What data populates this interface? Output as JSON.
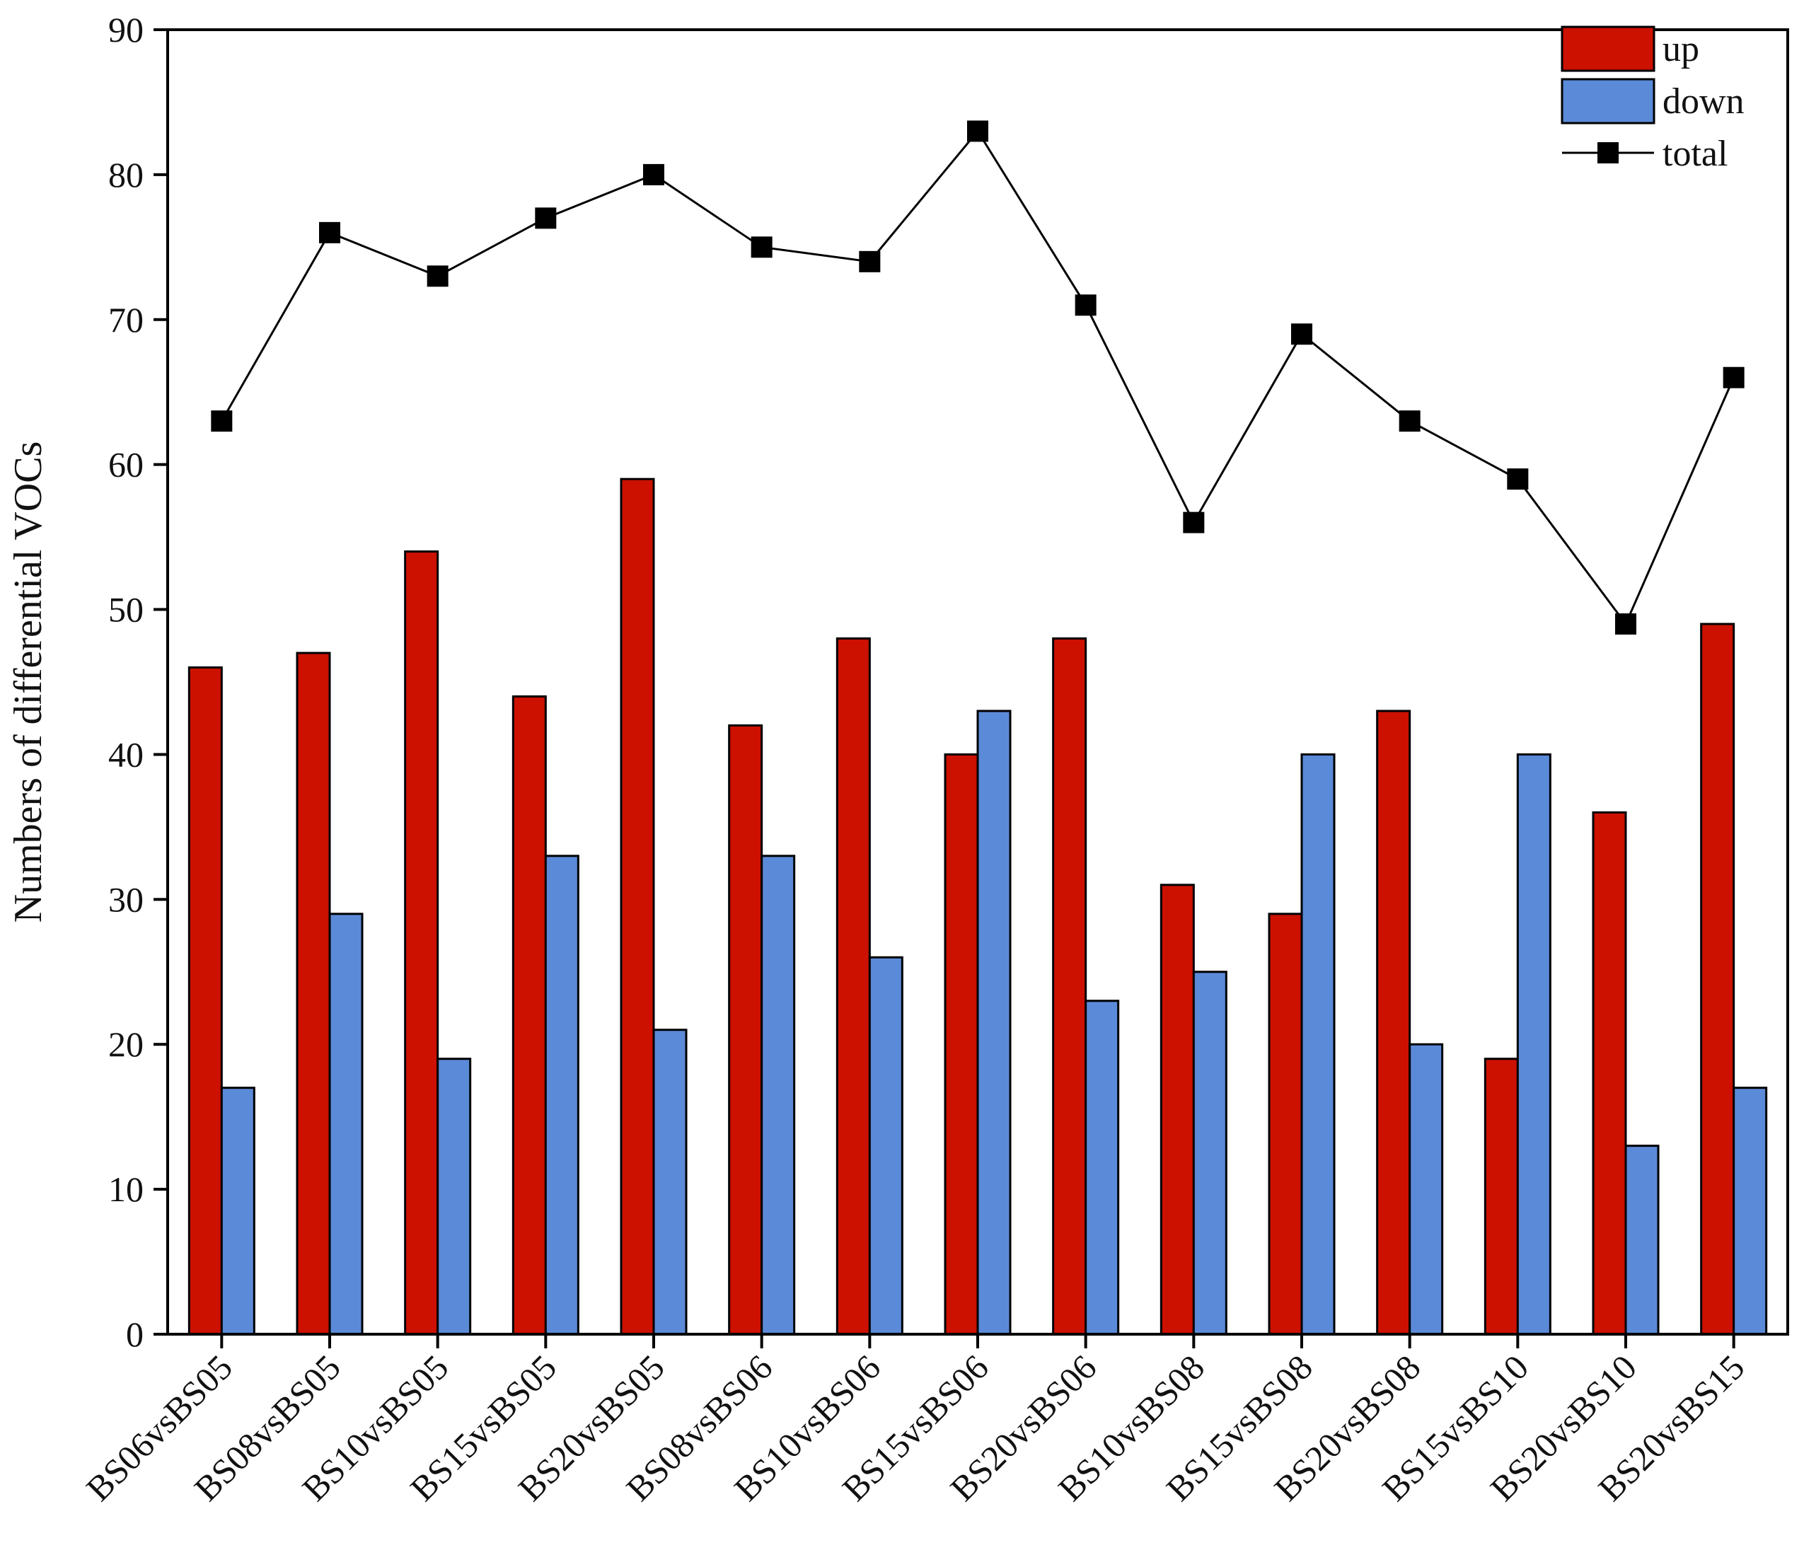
{
  "chart_data": {
    "type": "bar",
    "title": "",
    "xlabel": "",
    "ylabel": "Numbers of differential VOCs",
    "ylim": [
      0,
      90
    ],
    "yticks": [
      "0",
      "10",
      "20",
      "30",
      "40",
      "50",
      "60",
      "70",
      "80",
      "90"
    ],
    "grid": false,
    "legend_position": "top-right",
    "categories": [
      "BS06vsBS05",
      "BS08vsBS05",
      "BS10vsBS05",
      "BS15vsBS05",
      "BS20vsBS05",
      "BS08vsBS06",
      "BS10vsBS06",
      "BS15vsBS06",
      "BS20vsBS06",
      "BS10vsBS08",
      "BS15vsBS08",
      "BS20vsBS08",
      "BS15vsBS10",
      "BS20vsBS10",
      "BS20vsBS15"
    ],
    "series": [
      {
        "name": "up",
        "kind": "bar",
        "color": "#cc1100",
        "values": [
          46,
          47,
          54,
          44,
          59,
          42,
          48,
          40,
          48,
          31,
          29,
          43,
          19,
          36,
          49
        ]
      },
      {
        "name": "down",
        "kind": "bar",
        "color": "#5b8ad8",
        "values": [
          17,
          29,
          19,
          33,
          21,
          33,
          26,
          43,
          23,
          25,
          40,
          20,
          40,
          13,
          17
        ]
      },
      {
        "name": "total",
        "kind": "line",
        "color": "#000000",
        "values": [
          63,
          76,
          73,
          77,
          80,
          75,
          74,
          83,
          71,
          56,
          69,
          63,
          59,
          49,
          66
        ]
      }
    ]
  }
}
